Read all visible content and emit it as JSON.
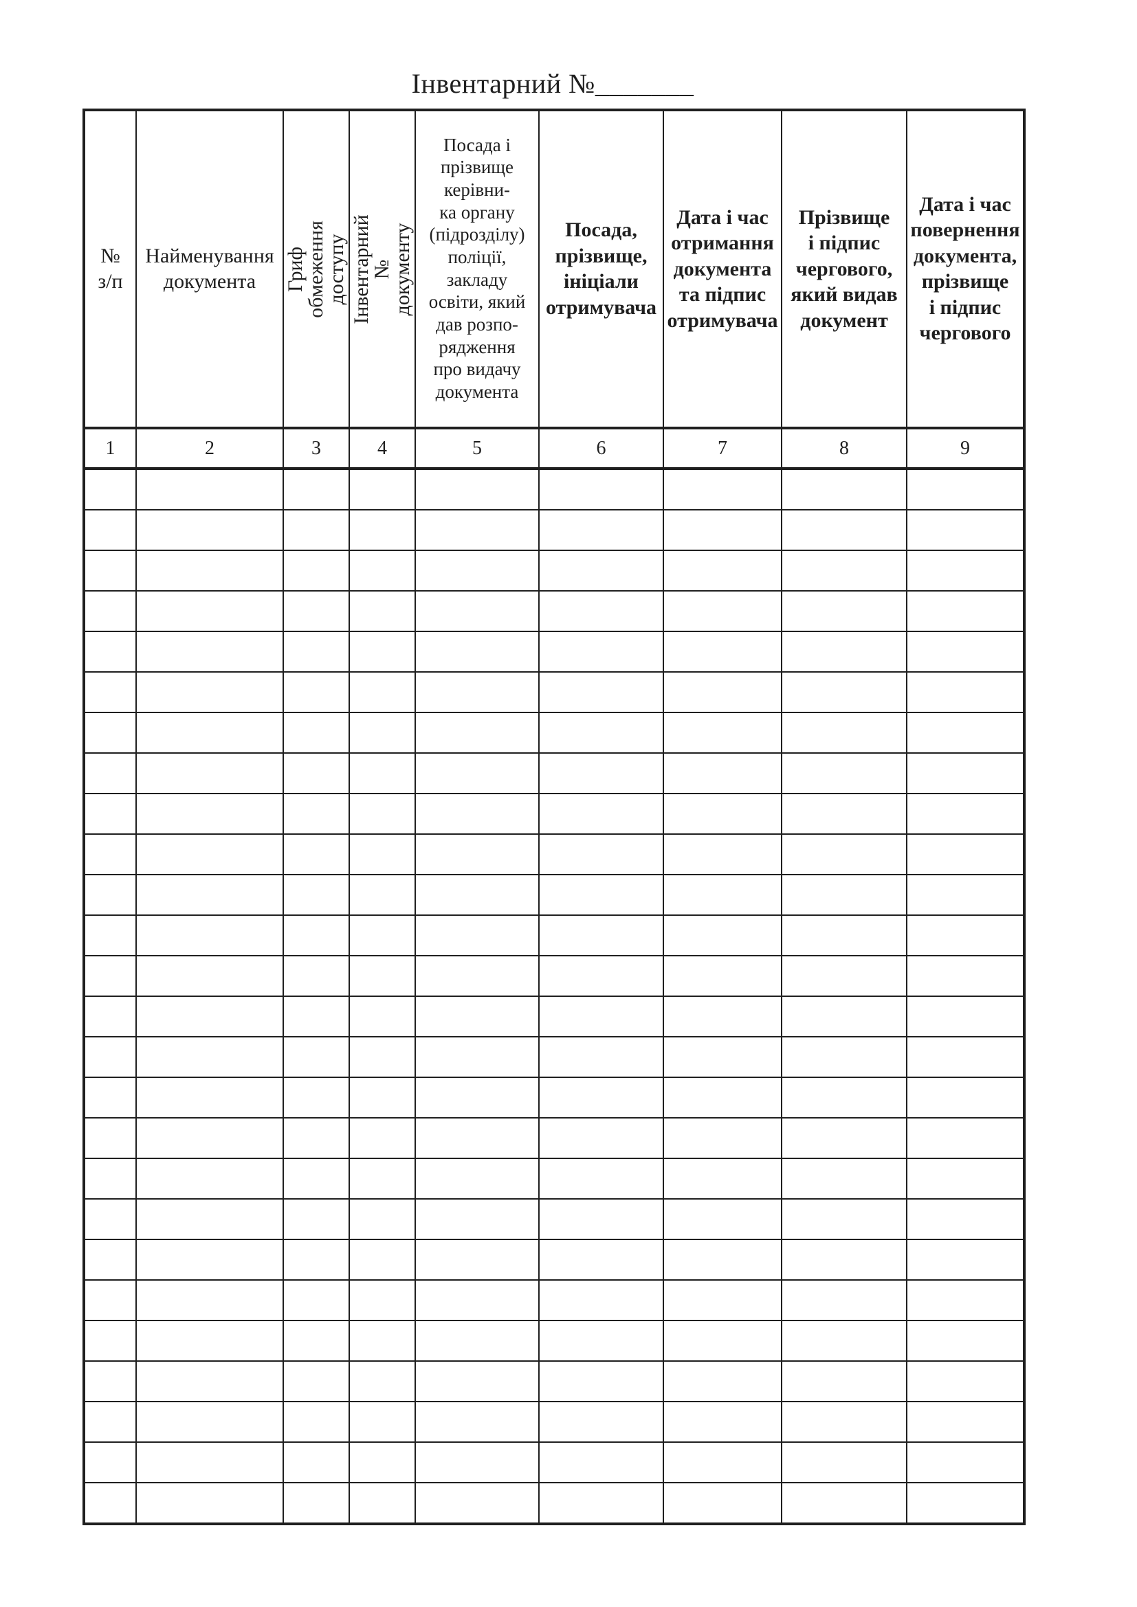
{
  "page": {
    "title": "Інвентарний №_______"
  },
  "colors": {
    "ink": "#1f1f1f",
    "paper": "#ffffff"
  },
  "table": {
    "columns": [
      {
        "number": "1",
        "header": "№\nз/п"
      },
      {
        "number": "2",
        "header": "Найменування\nдокумента"
      },
      {
        "number": "3",
        "header": "Гриф обмеження доступу"
      },
      {
        "number": "4",
        "header": "Інвентарний № документу"
      },
      {
        "number": "5",
        "header": "Посада і\nпрізвище\nкерівни-\nка органу\n(підрозділу)\nполіції,\nзакладу\nосвіти, який\nдав розпо-\nрядження\nпро видачу\nдокумента"
      },
      {
        "number": "6",
        "header": "Посада,\nпрізвище,\nініціали\nотримувача"
      },
      {
        "number": "7",
        "header": "Дата і час\nотримання\nдокумента\nта підпис\nотримувача"
      },
      {
        "number": "8",
        "header": "Прізвище\nі підпис\nчергового,\nякий видав\nдокумент"
      },
      {
        "number": "9",
        "header": "Дата і час\nповернення\nдокумента,\nпрізвище\nі підпис\nчергового"
      }
    ],
    "empty_rows": 26
  }
}
